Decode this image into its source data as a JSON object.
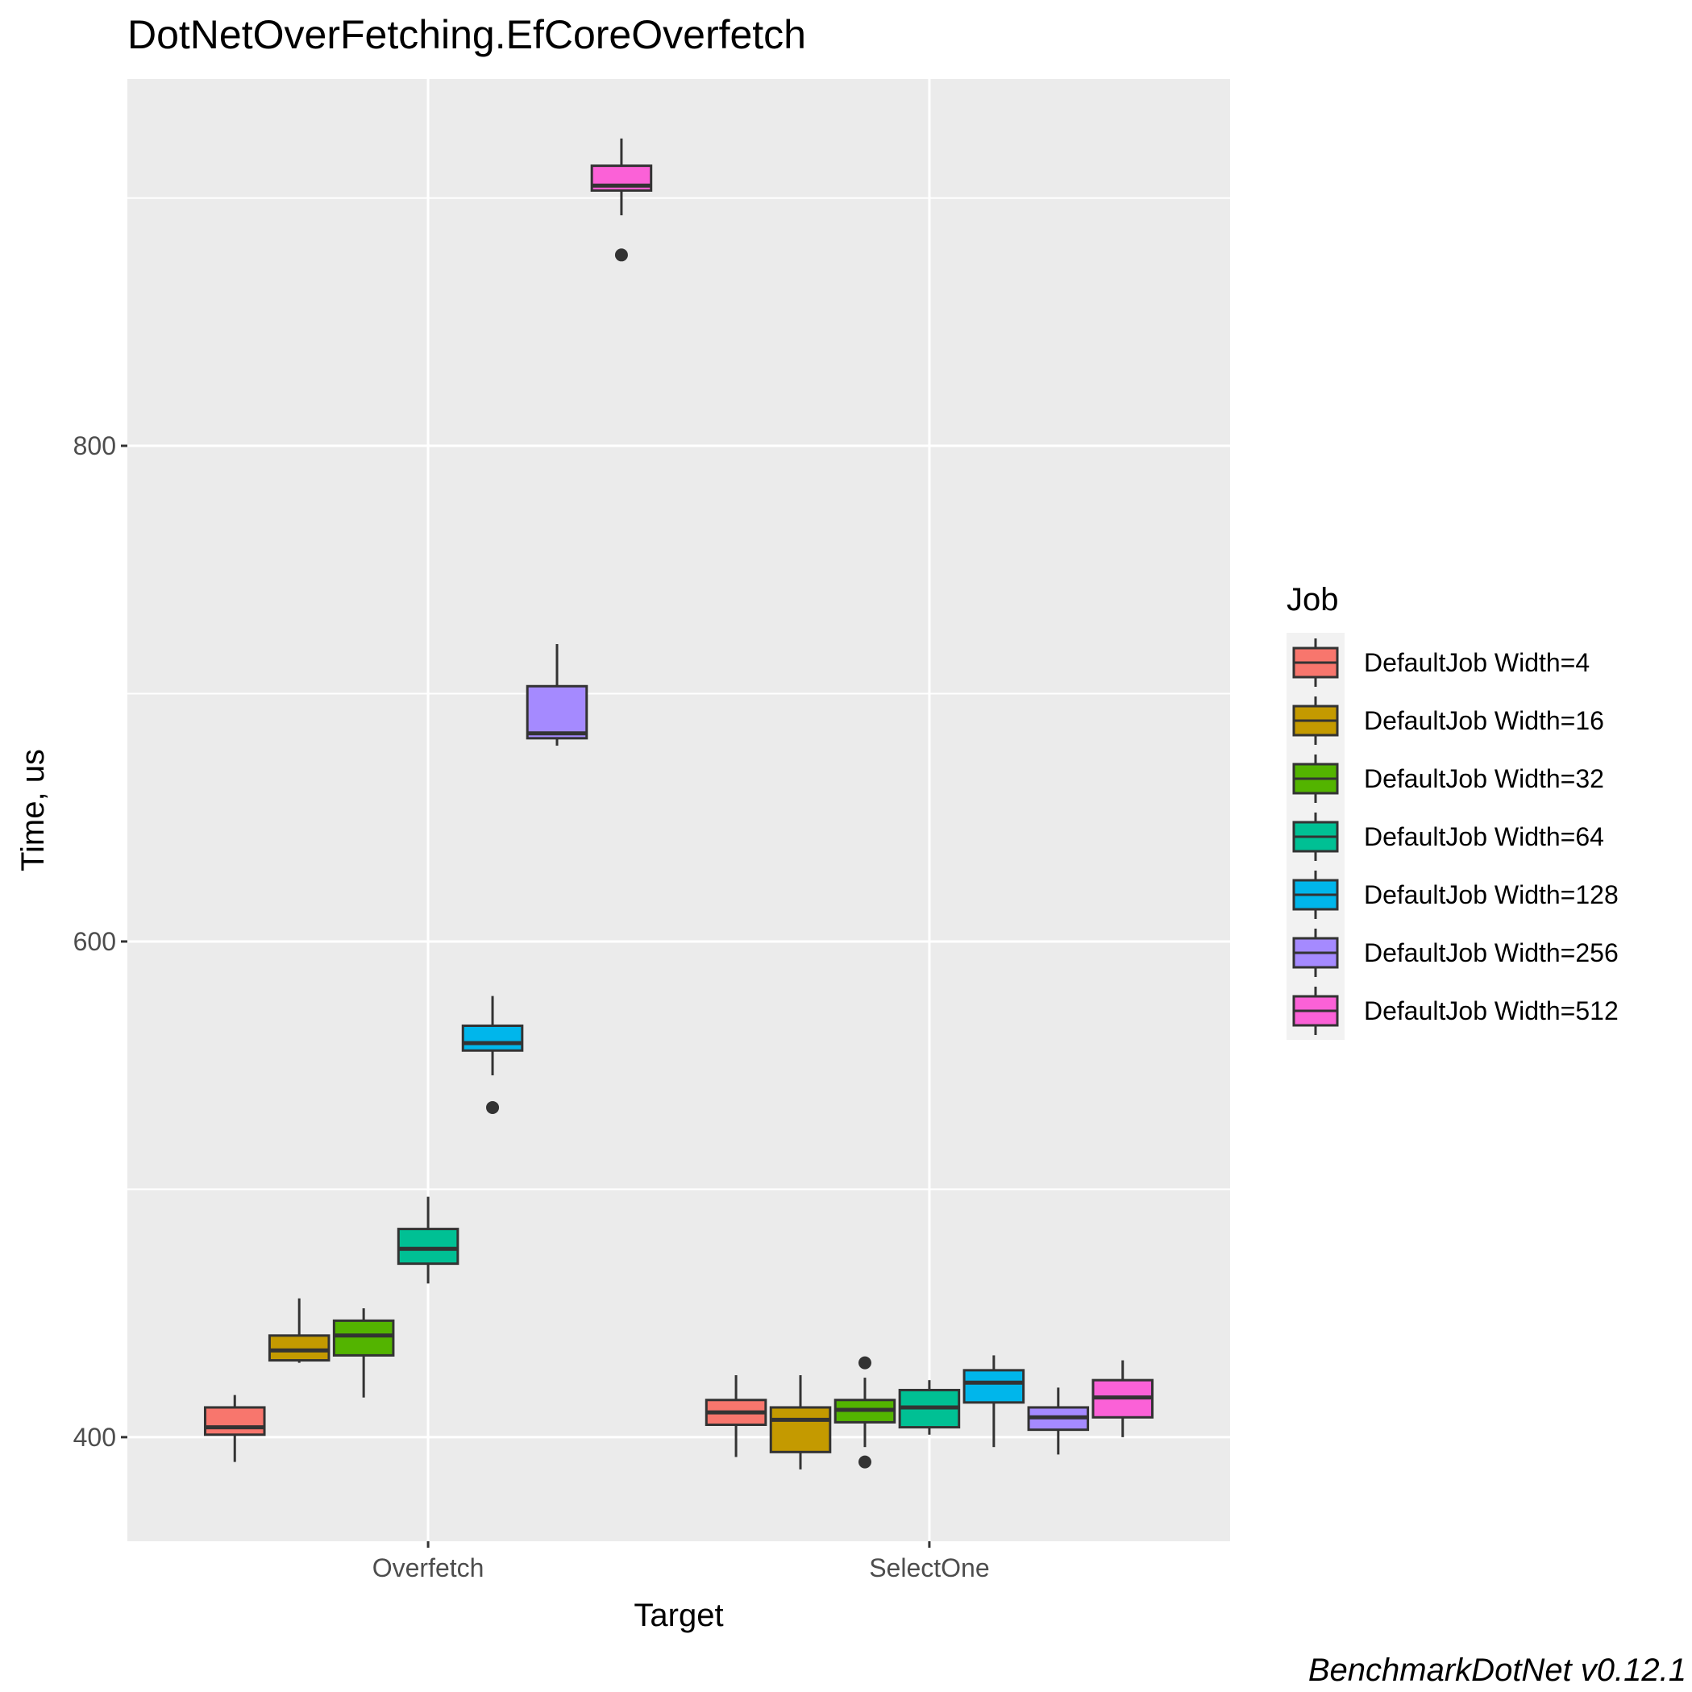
{
  "chart_data": {
    "type": "box",
    "title": "DotNetOverFetching.EfCoreOverfetch",
    "xlabel": "Target",
    "ylabel": "Time, us",
    "categories": [
      "Overfetch",
      "SelectOne"
    ],
    "yticks": [
      400,
      600,
      800
    ],
    "ylim": [
      358,
      948
    ],
    "grid": true,
    "legend": {
      "title": "Job",
      "position": "right"
    },
    "caption": "BenchmarkDotNet v0.12.1",
    "series": [
      {
        "name": "DefaultJob Width=4",
        "color": "#F8766D",
        "boxes": [
          {
            "category": "Overfetch",
            "min": 390,
            "q1": 401,
            "median": 404,
            "q3": 412,
            "max": 417,
            "outliers": []
          },
          {
            "category": "SelectOne",
            "min": 392,
            "q1": 405,
            "median": 410,
            "q3": 415,
            "max": 425,
            "outliers": []
          }
        ]
      },
      {
        "name": "DefaultJob Width=16",
        "color": "#C49A00",
        "boxes": [
          {
            "category": "Overfetch",
            "min": 430,
            "q1": 431,
            "median": 435,
            "q3": 441,
            "max": 456,
            "outliers": []
          },
          {
            "category": "SelectOne",
            "min": 387,
            "q1": 394,
            "median": 407,
            "q3": 412,
            "max": 425,
            "outliers": []
          }
        ]
      },
      {
        "name": "DefaultJob Width=32",
        "color": "#53B400",
        "boxes": [
          {
            "category": "Overfetch",
            "min": 416,
            "q1": 433,
            "median": 441,
            "q3": 447,
            "max": 452,
            "outliers": []
          },
          {
            "category": "SelectOne",
            "min": 396,
            "q1": 406,
            "median": 411,
            "q3": 415,
            "max": 424,
            "outliers": [
              390,
              430
            ]
          }
        ]
      },
      {
        "name": "DefaultJob Width=64",
        "color": "#00C094",
        "boxes": [
          {
            "category": "Overfetch",
            "min": 462,
            "q1": 470,
            "median": 476,
            "q3": 484,
            "max": 497,
            "outliers": []
          },
          {
            "category": "SelectOne",
            "min": 401,
            "q1": 404,
            "median": 412,
            "q3": 419,
            "max": 423,
            "outliers": []
          }
        ]
      },
      {
        "name": "DefaultJob Width=128",
        "color": "#00B6EB",
        "boxes": [
          {
            "category": "Overfetch",
            "min": 546,
            "q1": 556,
            "median": 559,
            "q3": 566,
            "max": 578,
            "outliers": [
              533
            ]
          },
          {
            "category": "SelectOne",
            "min": 396,
            "q1": 414,
            "median": 422,
            "q3": 427,
            "max": 433,
            "outliers": []
          }
        ]
      },
      {
        "name": "DefaultJob Width=256",
        "color": "#A58AFF",
        "boxes": [
          {
            "category": "Overfetch",
            "min": 679,
            "q1": 682,
            "median": 684,
            "q3": 703,
            "max": 720,
            "outliers": []
          },
          {
            "category": "SelectOne",
            "min": 393,
            "q1": 403,
            "median": 408,
            "q3": 412,
            "max": 420,
            "outliers": []
          }
        ]
      },
      {
        "name": "DefaultJob Width=512",
        "color": "#FB61D7",
        "boxes": [
          {
            "category": "Overfetch",
            "min": 893,
            "q1": 903,
            "median": 905,
            "q3": 913,
            "max": 924,
            "outliers": [
              877
            ]
          },
          {
            "category": "SelectOne",
            "min": 400,
            "q1": 408,
            "median": 416,
            "q3": 423,
            "max": 431,
            "outliers": []
          }
        ]
      }
    ]
  }
}
